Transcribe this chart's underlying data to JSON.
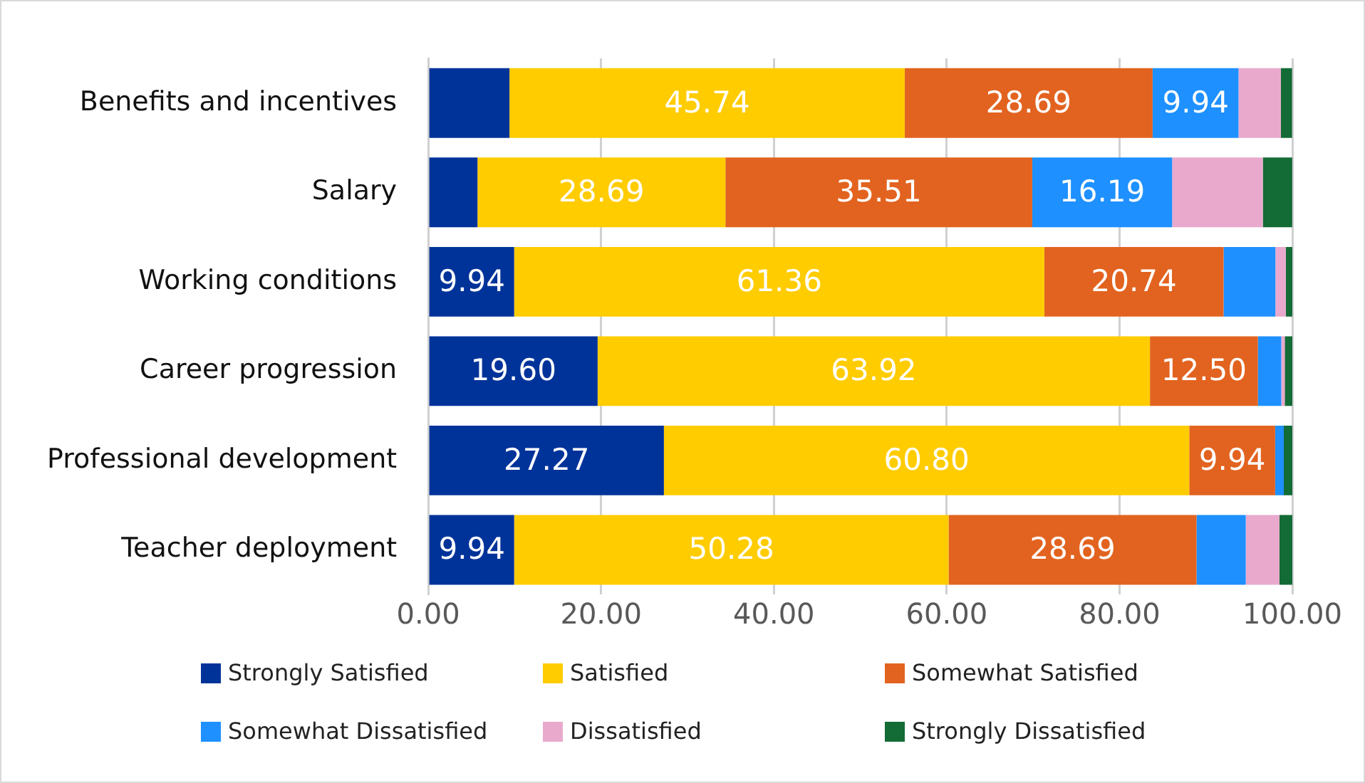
{
  "chart_data": {
    "type": "bar",
    "orientation": "horizontal",
    "stacked": true,
    "categories": [
      "Benefits and incentives",
      "Salary",
      "Working conditions",
      "Career progression",
      "Professional development",
      "Teacher deployment"
    ],
    "series": [
      {
        "name": "Strongly Satisfied",
        "color": "#003399",
        "values": [
          9.4,
          5.7,
          9.94,
          19.6,
          27.27,
          9.94
        ],
        "value_labels": [
          null,
          null,
          "9.94",
          "19.60",
          "27.27",
          "9.94"
        ]
      },
      {
        "name": "Satisfied",
        "color": "#ffcc00",
        "values": [
          45.74,
          28.69,
          61.36,
          63.92,
          60.8,
          50.28
        ],
        "value_labels": [
          "45.74",
          "28.69",
          "61.36",
          "63.92",
          "60.80",
          "50.28"
        ]
      },
      {
        "name": "Somewhat Satisfied",
        "color": "#e2631f",
        "values": [
          28.69,
          35.51,
          20.74,
          12.5,
          9.94,
          28.69
        ],
        "value_labels": [
          "28.69",
          "35.51",
          "20.74",
          "12.50",
          "9.94",
          "28.69"
        ]
      },
      {
        "name": "Somewhat Dissatisfied",
        "color": "#1e90ff",
        "values": [
          9.94,
          16.19,
          6.0,
          2.7,
          1.0,
          5.7
        ],
        "value_labels": [
          "9.94",
          "16.19",
          null,
          null,
          null,
          null
        ]
      },
      {
        "name": "Dissatisfied",
        "color": "#e9a9cc",
        "values": [
          4.9,
          10.5,
          1.2,
          0.4,
          0,
          3.9
        ]
      },
      {
        "name": "Strongly Dissatisfied",
        "color": "#136b36",
        "values": [
          1.3,
          3.4,
          0.8,
          0.9,
          1.0,
          1.5
        ]
      }
    ],
    "xlim": [
      0,
      100
    ],
    "xticks": [
      {
        "value": 0,
        "label": "0.00"
      },
      {
        "value": 20,
        "label": "20.00"
      },
      {
        "value": 40,
        "label": "40.00"
      },
      {
        "value": 60,
        "label": "60.00"
      },
      {
        "value": 80,
        "label": "80.00"
      },
      {
        "value": 100,
        "label": "100.00"
      }
    ],
    "grid": "x",
    "legend": "bottom"
  }
}
